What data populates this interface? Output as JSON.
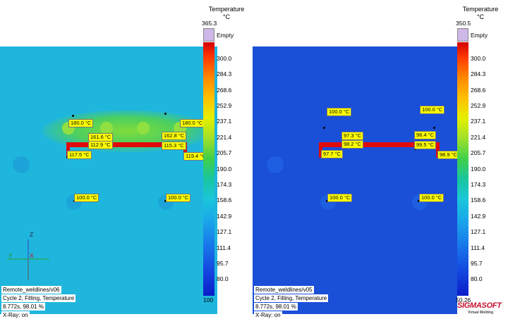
{
  "legend_left": {
    "title": "Temperature",
    "unit": "°C",
    "max": "365.3",
    "empty": "Empty",
    "ticks": [
      "300.0",
      "284.3",
      "268.6",
      "252.9",
      "237.1",
      "221.4",
      "205.7",
      "190.0",
      "174.3",
      "158.6",
      "142.9",
      "127.1",
      "111.4",
      "95.7",
      "80.0"
    ],
    "min": "100"
  },
  "legend_right": {
    "title": "Temperature",
    "unit": "°C",
    "max": "350.5",
    "empty": "Empty",
    "ticks": [
      "300.0",
      "284.3",
      "268.6",
      "252.9",
      "237.1",
      "221.4",
      "205.7",
      "190.0",
      "174.3",
      "158.6",
      "142.9",
      "127.1",
      "111.4",
      "95.7",
      "80.0"
    ],
    "min": "50.26"
  },
  "left_labels": [
    "180.0 °C",
    "180.0 °C",
    "161.6 °C",
    "162.8 °C",
    "112.9 °C",
    "115.3 °C",
    "117.5 °C",
    "119.4 °C",
    "100.0 °C",
    "100.0 °C"
  ],
  "right_labels": [
    "100.0 °C",
    "100.0 °C",
    "97.3 °C",
    "98.4 °C",
    "98.2 °C",
    "99.5 °C",
    "97.7 °C",
    "98.9 °C",
    "100.0 °C",
    "100.0 °C"
  ],
  "axes": {
    "z": "Z",
    "y": "Y",
    "x": "X"
  },
  "info_left": [
    "Remote_weldlines/v06",
    "Cycle 2, Filling, Temperature",
    "8.772s, 98.01 %",
    "X-Ray: on"
  ],
  "info_right": [
    "Remote_weldlines/v05",
    "Cycle 2, Filling, Temperature",
    "8.772s, 98.01 %",
    "X-Ray: on"
  ],
  "logo": {
    "brand": "SIGMASOFT",
    "tagline": "Virtual Molding"
  },
  "colors": {
    "left_bg": "#1fb6dd",
    "right_bg": "#1a4fd8",
    "runner": "#e00a0a",
    "label_bg": "#ffff00"
  }
}
